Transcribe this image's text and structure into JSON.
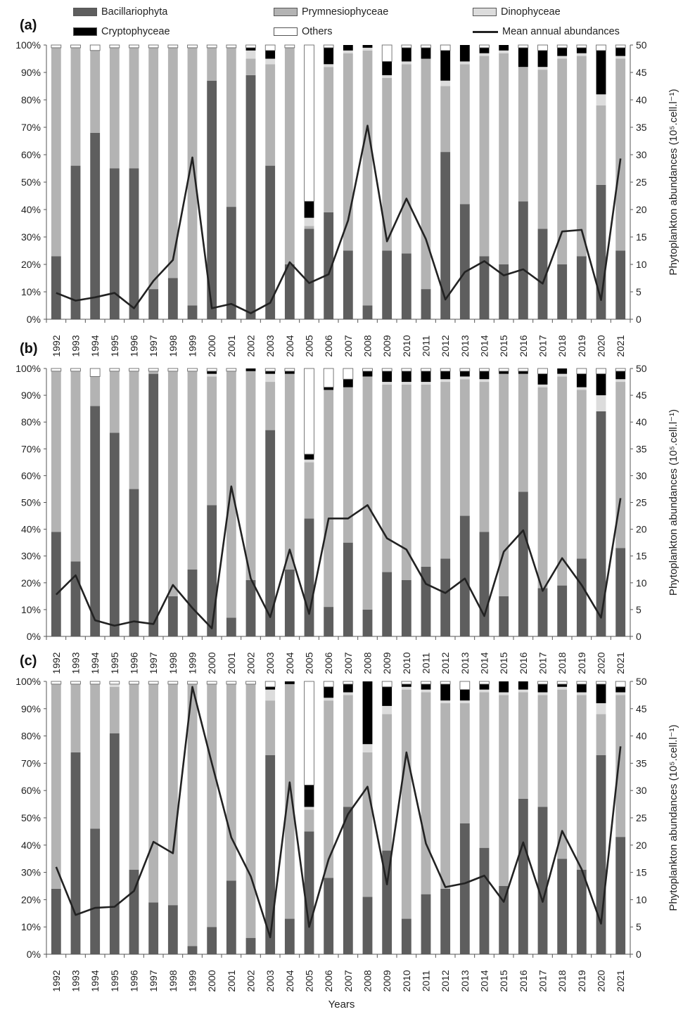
{
  "legend": {
    "items": [
      {
        "name": "Bacillariophyta",
        "color": "#5e5e5e",
        "kind": "bar"
      },
      {
        "name": "Prymnesiophyceae",
        "color": "#b3b3b3",
        "kind": "bar"
      },
      {
        "name": "Dinophyceae",
        "color": "#dcdcdc",
        "kind": "bar"
      },
      {
        "name": "Cryptophyceae",
        "color": "#000000",
        "kind": "bar"
      },
      {
        "name": "Others",
        "color": "#ffffff",
        "kind": "bar"
      },
      {
        "name": "Mean annual abundances",
        "color": "#222222",
        "kind": "line"
      }
    ]
  },
  "x_title": "Years",
  "chart_data": [
    {
      "type": "bar",
      "panel_label": "(a)",
      "stacked": true,
      "categories": [
        "1992",
        "1993",
        "1994",
        "1995",
        "1996",
        "1997",
        "1998",
        "1999",
        "2000",
        "2001",
        "2002",
        "2003",
        "2004",
        "2005",
        "2006",
        "2007",
        "2008",
        "2009",
        "2010",
        "2011",
        "2012",
        "2013",
        "2014",
        "2015",
        "2016",
        "2017",
        "2018",
        "2019",
        "2020",
        "2021"
      ],
      "series": [
        {
          "name": "Bacillariophyta",
          "values": [
            23,
            56,
            68,
            55,
            55,
            11,
            15,
            5,
            87,
            41,
            89,
            56,
            20,
            33,
            39,
            25,
            5,
            25,
            24,
            11,
            61,
            42,
            23,
            20,
            43,
            33,
            20,
            23,
            49,
            25
          ]
        },
        {
          "name": "Prymnesiophyceae",
          "values": [
            76,
            43,
            30,
            44,
            44,
            88,
            84,
            94,
            12,
            58,
            6,
            37,
            79,
            1,
            53,
            72,
            93,
            63,
            69,
            84,
            24,
            51,
            73,
            77,
            49,
            58,
            75,
            73,
            29,
            70
          ]
        },
        {
          "name": "Dinophyceae",
          "values": [
            0,
            0,
            0,
            0,
            0,
            0,
            0,
            0,
            0,
            0,
            3,
            2,
            0,
            3,
            1,
            1,
            1,
            1,
            1,
            0,
            2,
            1,
            1,
            1,
            0,
            1,
            1,
            1,
            4,
            1
          ]
        },
        {
          "name": "Cryptophyceae",
          "values": [
            0,
            0,
            0,
            0,
            0,
            0,
            0,
            0,
            0,
            0,
            1,
            3,
            0,
            6,
            6,
            2,
            1,
            5,
            5,
            4,
            11,
            6,
            2,
            2,
            7,
            6,
            3,
            2,
            16,
            3
          ]
        },
        {
          "name": "Others",
          "values": [
            1,
            1,
            2,
            1,
            1,
            1,
            1,
            1,
            1,
            1,
            1,
            2,
            1,
            57,
            1,
            0,
            0,
            6,
            1,
            1,
            2,
            0,
            1,
            0,
            1,
            2,
            1,
            1,
            2,
            1
          ]
        }
      ],
      "line": {
        "name": "Mean annual abundances",
        "values": [
          4.8,
          3.4,
          4,
          4.8,
          2,
          7,
          10.8,
          29.5,
          2,
          2.8,
          1.1,
          3,
          10.4,
          6.6,
          8.2,
          18,
          35.3,
          14.2,
          22,
          14.6,
          3.6,
          8.6,
          10.6,
          8,
          9.1,
          6.5,
          16,
          16.3,
          3.5,
          29.3
        ]
      },
      "ylabel_left": "",
      "ylabel_right": "Phytoplankton abundances (10⁵.cell.l⁻¹)",
      "ylim_left": [
        0,
        100
      ],
      "ylim_right": [
        0,
        50
      ],
      "left_ticks": [
        "0%",
        "10%",
        "20%",
        "30%",
        "40%",
        "50%",
        "60%",
        "70%",
        "80%",
        "90%",
        "100%"
      ],
      "right_ticks": [
        "0",
        "5",
        "10",
        "15",
        "20",
        "25",
        "30",
        "35",
        "40",
        "45",
        "50"
      ]
    },
    {
      "type": "bar",
      "panel_label": "(b)",
      "stacked": true,
      "categories": [
        "1992",
        "1993",
        "1994",
        "1995",
        "1996",
        "1997",
        "1998",
        "1999",
        "2000",
        "2001",
        "2002",
        "2003",
        "2004",
        "2005",
        "2006",
        "2007",
        "2008",
        "2009",
        "2010",
        "2011",
        "2012",
        "2013",
        "2014",
        "2015",
        "2016",
        "2017",
        "2018",
        "2019",
        "2020",
        "2021"
      ],
      "series": [
        {
          "name": "Bacillariophyta",
          "values": [
            39,
            28,
            86,
            76,
            55,
            98,
            15,
            25,
            49,
            7,
            21,
            77,
            25,
            44,
            11,
            35,
            10,
            24,
            21,
            26,
            29,
            45,
            39,
            15,
            54,
            18,
            19,
            29,
            84,
            33
          ]
        },
        {
          "name": "Prymnesiophyceae",
          "values": [
            60,
            71,
            11,
            23,
            44,
            1,
            84,
            74,
            48,
            92,
            78,
            18,
            73,
            21,
            81,
            58,
            87,
            70,
            73,
            68,
            66,
            51,
            56,
            83,
            44,
            75,
            78,
            63,
            0,
            62
          ]
        },
        {
          "name": "Dinophyceae",
          "values": [
            0,
            0,
            0,
            0,
            0,
            0,
            0,
            0,
            1,
            0,
            0,
            3,
            0,
            1,
            0,
            0,
            0,
            1,
            1,
            1,
            1,
            1,
            1,
            0,
            0,
            1,
            1,
            1,
            6,
            1
          ]
        },
        {
          "name": "Cryptophyceae",
          "values": [
            0,
            0,
            0,
            0,
            0,
            0,
            0,
            0,
            1,
            0,
            1,
            1,
            1,
            2,
            1,
            3,
            2,
            4,
            4,
            4,
            3,
            2,
            3,
            1,
            1,
            4,
            2,
            5,
            8,
            3
          ]
        },
        {
          "name": "Others",
          "values": [
            1,
            1,
            3,
            1,
            1,
            1,
            1,
            1,
            1,
            1,
            0,
            1,
            1,
            32,
            7,
            4,
            1,
            1,
            1,
            1,
            1,
            1,
            1,
            1,
            1,
            2,
            0,
            2,
            2,
            1
          ]
        }
      ],
      "line": {
        "name": "Mean annual abundances",
        "values": [
          7.8,
          11.4,
          3,
          2,
          2.8,
          2.3,
          9.6,
          5.3,
          1.5,
          28,
          10.8,
          3.6,
          16.2,
          4.2,
          22,
          22,
          24.5,
          18.3,
          16.2,
          9.8,
          8.1,
          10.8,
          3.8,
          15.8,
          19.8,
          8.5,
          14.6,
          9.6,
          3.5,
          25.8
        ]
      },
      "ylabel_left": "",
      "ylabel_right": "Phytoplankton abundances (10⁵.cell.l⁻¹)",
      "ylim_left": [
        0,
        100
      ],
      "ylim_right": [
        0,
        50
      ],
      "left_ticks": [
        "0%",
        "10%",
        "20%",
        "30%",
        "40%",
        "50%",
        "60%",
        "70%",
        "80%",
        "90%",
        "100%"
      ],
      "right_ticks": [
        "0",
        "5",
        "10",
        "15",
        "20",
        "25",
        "30",
        "35",
        "40",
        "45",
        "50"
      ]
    },
    {
      "type": "bar",
      "panel_label": "(c)",
      "stacked": true,
      "categories": [
        "1992",
        "1993",
        "1994",
        "1995",
        "1996",
        "1997",
        "1998",
        "1999",
        "2000",
        "2001",
        "2002",
        "2003",
        "2004",
        "2005",
        "2006",
        "2007",
        "2008",
        "2009",
        "2010",
        "2011",
        "2012",
        "2013",
        "2014",
        "2015",
        "2016",
        "2017",
        "2018",
        "2019",
        "2020",
        "2021"
      ],
      "series": [
        {
          "name": "Bacillariophyta",
          "values": [
            24,
            74,
            46,
            81,
            31,
            19,
            18,
            3,
            10,
            27,
            6,
            73,
            13,
            45,
            28,
            54,
            21,
            38,
            13,
            22,
            24,
            48,
            39,
            25,
            57,
            54,
            35,
            31,
            73,
            43
          ]
        },
        {
          "name": "Prymnesiophyceae",
          "values": [
            75,
            25,
            53,
            17,
            68,
            80,
            81,
            96,
            89,
            72,
            93,
            20,
            86,
            8,
            65,
            41,
            53,
            50,
            84,
            74,
            68,
            44,
            57,
            70,
            39,
            41,
            62,
            64,
            15,
            52
          ]
        },
        {
          "name": "Dinophyceae",
          "values": [
            0,
            0,
            0,
            1,
            0,
            0,
            0,
            0,
            0,
            0,
            0,
            4,
            0,
            1,
            1,
            1,
            3,
            3,
            1,
            1,
            1,
            1,
            1,
            1,
            1,
            1,
            1,
            1,
            4,
            1
          ]
        },
        {
          "name": "Cryptophyceae",
          "values": [
            0,
            0,
            0,
            0,
            0,
            0,
            0,
            0,
            0,
            0,
            0,
            1,
            1,
            8,
            4,
            3,
            23,
            7,
            1,
            2,
            6,
            4,
            2,
            4,
            3,
            3,
            1,
            3,
            7,
            2
          ]
        },
        {
          "name": "Others",
          "values": [
            1,
            1,
            1,
            1,
            1,
            1,
            1,
            1,
            1,
            1,
            1,
            2,
            0,
            38,
            2,
            1,
            0,
            2,
            1,
            1,
            1,
            3,
            1,
            0,
            0,
            1,
            1,
            1,
            1,
            2
          ]
        }
      ],
      "line": {
        "name": "Mean annual abundances",
        "values": [
          16,
          7.2,
          8.5,
          8.7,
          11.6,
          20.6,
          18.5,
          49,
          35,
          21.4,
          14.3,
          3.1,
          31.5,
          5,
          17.4,
          25.7,
          30.7,
          12.8,
          37,
          20.3,
          12.3,
          13,
          14.4,
          9.6,
          20.5,
          9.6,
          22.6,
          15.6,
          5.6,
          38.1
        ]
      },
      "ylabel_left": "",
      "ylabel_right": "Phytoplankton abundances (10⁵.cell.l⁻¹)",
      "ylim_left": [
        0,
        100
      ],
      "ylim_right": [
        0,
        50
      ],
      "left_ticks": [
        "0%",
        "10%",
        "20%",
        "30%",
        "40%",
        "50%",
        "60%",
        "70%",
        "80%",
        "90%",
        "100%"
      ],
      "right_ticks": [
        "0",
        "5",
        "10",
        "15",
        "20",
        "25",
        "30",
        "35",
        "40",
        "45",
        "50"
      ]
    }
  ]
}
